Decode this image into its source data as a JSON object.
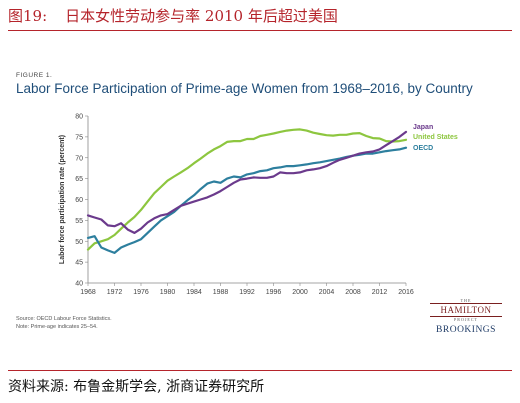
{
  "header": {
    "figure_number": "图19:",
    "title": "日本女性劳动参与率 2010 年后超过美国"
  },
  "figure_label": "FIGURE 1.",
  "chart_data": {
    "type": "line",
    "title": "Labor Force Participation of Prime-age Women from 1968–2016, by Country",
    "xlabel": "",
    "ylabel": "Labor force participation rate (percent)",
    "xlim": [
      1968,
      2016
    ],
    "ylim": [
      40,
      80
    ],
    "x_ticks": [
      "1968",
      "1972",
      "1976",
      "1980",
      "1984",
      "1988",
      "1992",
      "1996",
      "2000",
      "2004",
      "2008",
      "2012",
      "2016"
    ],
    "y_ticks": [
      "40",
      "45",
      "50",
      "55",
      "60",
      "65",
      "70",
      "75",
      "80"
    ],
    "grid": false,
    "legend_position": "right-end labels",
    "series": [
      {
        "name": "Japan",
        "color": "#6b3a8c",
        "x": [
          1968,
          1969,
          1970,
          1971,
          1972,
          1973,
          1974,
          1975,
          1976,
          1977,
          1978,
          1979,
          1980,
          1981,
          1982,
          1983,
          1984,
          1985,
          1986,
          1987,
          1988,
          1989,
          1990,
          1991,
          1992,
          1993,
          1994,
          1995,
          1996,
          1997,
          1998,
          1999,
          2000,
          2001,
          2002,
          2003,
          2004,
          2005,
          2006,
          2007,
          2008,
          2009,
          2010,
          2011,
          2012,
          2013,
          2014,
          2015,
          2016
        ],
        "values": [
          56.2,
          55.7,
          55.2,
          53.8,
          53.6,
          54.3,
          52.8,
          52.0,
          53.0,
          54.5,
          55.5,
          56.2,
          56.5,
          57.5,
          58.5,
          59.0,
          59.5,
          60.0,
          60.5,
          61.2,
          62.0,
          63.0,
          64.0,
          64.8,
          65.0,
          65.3,
          65.2,
          65.2,
          65.5,
          66.5,
          66.3,
          66.3,
          66.5,
          67.0,
          67.2,
          67.5,
          68.0,
          68.8,
          69.5,
          70.0,
          70.5,
          71.0,
          71.3,
          71.5,
          72.0,
          73.0,
          74.0,
          75.0,
          76.2
        ]
      },
      {
        "name": "United States",
        "color": "#8dc63f",
        "x": [
          1968,
          1969,
          1970,
          1971,
          1972,
          1973,
          1974,
          1975,
          1976,
          1977,
          1978,
          1979,
          1980,
          1981,
          1982,
          1983,
          1984,
          1985,
          1986,
          1987,
          1988,
          1989,
          1990,
          1991,
          1992,
          1993,
          1994,
          1995,
          1996,
          1997,
          1998,
          1999,
          2000,
          2001,
          2002,
          2003,
          2004,
          2005,
          2006,
          2007,
          2008,
          2009,
          2010,
          2011,
          2012,
          2013,
          2014,
          2015,
          2016
        ],
        "values": [
          48.0,
          49.5,
          50.0,
          50.5,
          51.5,
          53.0,
          54.5,
          55.8,
          57.5,
          59.5,
          61.5,
          63.0,
          64.5,
          65.5,
          66.5,
          67.5,
          68.7,
          69.8,
          71.0,
          72.0,
          72.8,
          73.8,
          74.0,
          74.0,
          74.5,
          74.5,
          75.2,
          75.5,
          75.8,
          76.2,
          76.5,
          76.7,
          76.8,
          76.5,
          76.0,
          75.7,
          75.4,
          75.3,
          75.5,
          75.5,
          75.8,
          75.9,
          75.2,
          74.7,
          74.6,
          74.0,
          73.9,
          74.0,
          74.3
        ]
      },
      {
        "name": "OECD",
        "color": "#2d7f9e",
        "x": [
          1968,
          1969,
          1970,
          1971,
          1972,
          1973,
          1974,
          1975,
          1976,
          1977,
          1978,
          1979,
          1980,
          1981,
          1982,
          1983,
          1984,
          1985,
          1986,
          1987,
          1988,
          1989,
          1990,
          1991,
          1992,
          1993,
          1994,
          1995,
          1996,
          1997,
          1998,
          1999,
          2000,
          2001,
          2002,
          2003,
          2004,
          2005,
          2006,
          2007,
          2008,
          2009,
          2010,
          2011,
          2012,
          2013,
          2014,
          2015,
          2016
        ],
        "values": [
          50.8,
          51.2,
          48.5,
          47.8,
          47.2,
          48.5,
          49.2,
          49.8,
          50.5,
          52.0,
          53.5,
          55.0,
          56.0,
          57.0,
          58.5,
          59.8,
          61.0,
          62.5,
          63.8,
          64.3,
          64.0,
          65.0,
          65.5,
          65.3,
          66.0,
          66.3,
          66.8,
          67.0,
          67.5,
          67.7,
          68.0,
          68.0,
          68.2,
          68.4,
          68.7,
          68.9,
          69.2,
          69.5,
          69.8,
          70.2,
          70.5,
          70.7,
          71.0,
          71.0,
          71.3,
          71.6,
          71.8,
          72.0,
          72.4
        ]
      }
    ]
  },
  "source_lines": [
    "Source: OECD Labour Force Statistics.",
    "Note: Prime-age indicates 25–54."
  ],
  "logo": {
    "the": "THE",
    "hamilton": "HAMILTON",
    "project": "PROJECT",
    "brookings": "BROOKINGS"
  },
  "footer": {
    "source_text": "资料来源: 布鲁金斯学会, 浙商证券研究所"
  }
}
